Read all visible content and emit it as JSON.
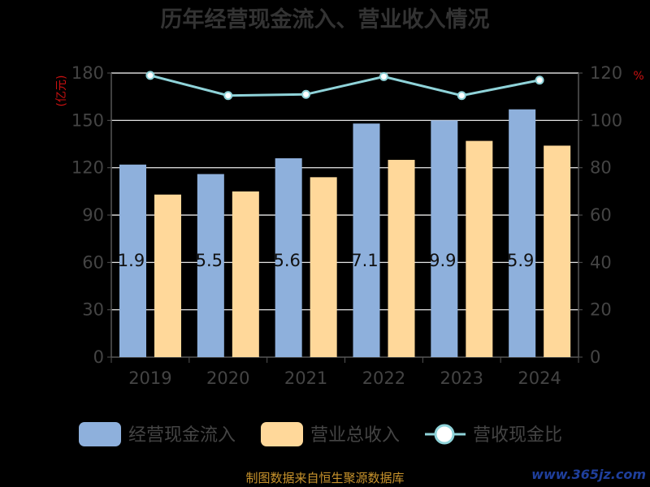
{
  "colors": {
    "cash": "#8eb0dc",
    "revenue": "#ffd89a",
    "ratio": "#8fd3d9",
    "grid": "#ffffff",
    "axis": "#555555"
  },
  "chart_data": {
    "type": "bar",
    "title": "历年经营现金流入、营业收入情况",
    "categories": [
      "2019",
      "2020",
      "2021",
      "2022",
      "2023",
      "2024"
    ],
    "y_left": {
      "unit_label": "(亿元)",
      "ticks": [
        "0",
        "30",
        "60",
        "90",
        "120",
        "150",
        "180"
      ],
      "range": [
        0,
        180
      ]
    },
    "y_right": {
      "unit_label": "%",
      "ticks": [
        "0",
        "20",
        "40",
        "60",
        "80",
        "100",
        "120"
      ],
      "range": [
        0,
        120
      ]
    },
    "series": [
      {
        "name": "经营现金流入",
        "type": "bar",
        "axis": "left",
        "values": [
          122,
          116,
          126,
          148,
          150,
          157
        ]
      },
      {
        "name": "营业总收入",
        "type": "bar",
        "axis": "left",
        "values": [
          103,
          105,
          114,
          125,
          137,
          134
        ]
      },
      {
        "name": "营收现金比",
        "type": "line",
        "axis": "right",
        "values": [
          119,
          110.5,
          111,
          118.5,
          110.5,
          117
        ]
      }
    ],
    "bar_labels": [
      "1.9",
      "5.5",
      "5.6",
      "7.1",
      "9.9",
      "5.9"
    ],
    "legend_position": "bottom",
    "grid": true
  },
  "footer": {
    "source": "制图数据来自恒生聚源数据库",
    "watermark": "www.365jz.com"
  }
}
